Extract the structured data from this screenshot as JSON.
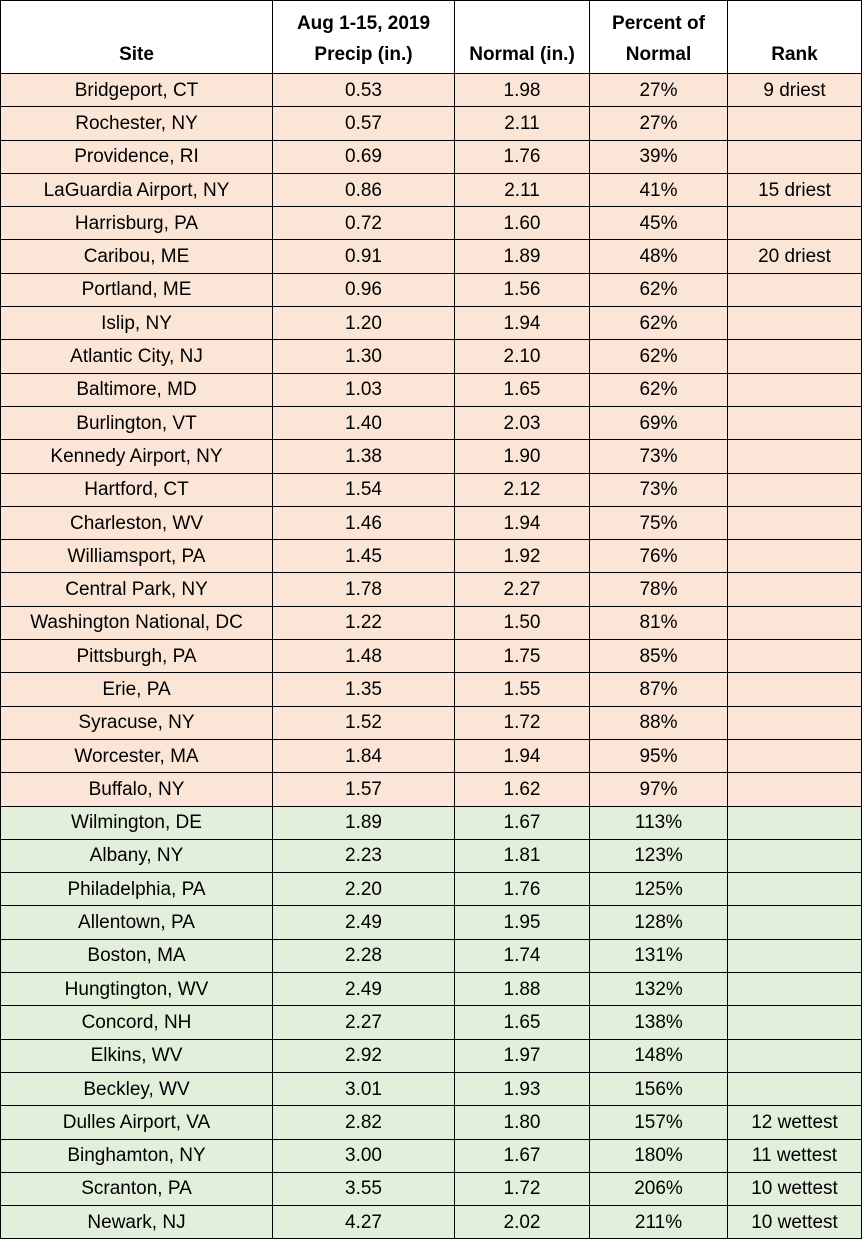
{
  "headers": {
    "site": "Site",
    "precip_line1": "Aug 1-15, 2019",
    "precip_line2": "Precip (in.)",
    "normal": "Normal (in.)",
    "percent_line1": "Percent of",
    "percent_line2": "Normal",
    "rank": "Rank"
  },
  "colors": {
    "below_normal_row": "#fbe5d6",
    "above_normal_row": "#e2efda"
  },
  "rows": [
    {
      "site": "Bridgeport, CT",
      "precip": "0.53",
      "normal": "1.98",
      "percent": "27%",
      "rank": "9 driest",
      "group": "dry"
    },
    {
      "site": "Rochester, NY",
      "precip": "0.57",
      "normal": "2.11",
      "percent": "27%",
      "rank": "",
      "group": "dry"
    },
    {
      "site": "Providence, RI",
      "precip": "0.69",
      "normal": "1.76",
      "percent": "39%",
      "rank": "",
      "group": "dry"
    },
    {
      "site": "LaGuardia Airport, NY",
      "precip": "0.86",
      "normal": "2.11",
      "percent": "41%",
      "rank": "15 driest",
      "group": "dry"
    },
    {
      "site": "Harrisburg, PA",
      "precip": "0.72",
      "normal": "1.60",
      "percent": "45%",
      "rank": "",
      "group": "dry"
    },
    {
      "site": "Caribou, ME",
      "precip": "0.91",
      "normal": "1.89",
      "percent": "48%",
      "rank": "20 driest",
      "group": "dry"
    },
    {
      "site": "Portland, ME",
      "precip": "0.96",
      "normal": "1.56",
      "percent": "62%",
      "rank": "",
      "group": "dry"
    },
    {
      "site": "Islip, NY",
      "precip": "1.20",
      "normal": "1.94",
      "percent": "62%",
      "rank": "",
      "group": "dry"
    },
    {
      "site": "Atlantic City, NJ",
      "precip": "1.30",
      "normal": "2.10",
      "percent": "62%",
      "rank": "",
      "group": "dry"
    },
    {
      "site": "Baltimore, MD",
      "precip": "1.03",
      "normal": "1.65",
      "percent": "62%",
      "rank": "",
      "group": "dry"
    },
    {
      "site": "Burlington, VT",
      "precip": "1.40",
      "normal": "2.03",
      "percent": "69%",
      "rank": "",
      "group": "dry"
    },
    {
      "site": "Kennedy Airport, NY",
      "precip": "1.38",
      "normal": "1.90",
      "percent": "73%",
      "rank": "",
      "group": "dry"
    },
    {
      "site": "Hartford, CT",
      "precip": "1.54",
      "normal": "2.12",
      "percent": "73%",
      "rank": "",
      "group": "dry"
    },
    {
      "site": "Charleston, WV",
      "precip": "1.46",
      "normal": "1.94",
      "percent": "75%",
      "rank": "",
      "group": "dry"
    },
    {
      "site": "Williamsport, PA",
      "precip": "1.45",
      "normal": "1.92",
      "percent": "76%",
      "rank": "",
      "group": "dry"
    },
    {
      "site": "Central Park, NY",
      "precip": "1.78",
      "normal": "2.27",
      "percent": "78%",
      "rank": "",
      "group": "dry"
    },
    {
      "site": "Washington National, DC",
      "precip": "1.22",
      "normal": "1.50",
      "percent": "81%",
      "rank": "",
      "group": "dry"
    },
    {
      "site": "Pittsburgh, PA",
      "precip": "1.48",
      "normal": "1.75",
      "percent": "85%",
      "rank": "",
      "group": "dry"
    },
    {
      "site": "Erie, PA",
      "precip": "1.35",
      "normal": "1.55",
      "percent": "87%",
      "rank": "",
      "group": "dry"
    },
    {
      "site": "Syracuse, NY",
      "precip": "1.52",
      "normal": "1.72",
      "percent": "88%",
      "rank": "",
      "group": "dry"
    },
    {
      "site": "Worcester, MA",
      "precip": "1.84",
      "normal": "1.94",
      "percent": "95%",
      "rank": "",
      "group": "dry"
    },
    {
      "site": "Buffalo, NY",
      "precip": "1.57",
      "normal": "1.62",
      "percent": "97%",
      "rank": "",
      "group": "dry"
    },
    {
      "site": "Wilmington, DE",
      "precip": "1.89",
      "normal": "1.67",
      "percent": "113%",
      "rank": "",
      "group": "wet"
    },
    {
      "site": "Albany, NY",
      "precip": "2.23",
      "normal": "1.81",
      "percent": "123%",
      "rank": "",
      "group": "wet"
    },
    {
      "site": "Philadelphia, PA",
      "precip": "2.20",
      "normal": "1.76",
      "percent": "125%",
      "rank": "",
      "group": "wet"
    },
    {
      "site": "Allentown, PA",
      "precip": "2.49",
      "normal": "1.95",
      "percent": "128%",
      "rank": "",
      "group": "wet"
    },
    {
      "site": "Boston, MA",
      "precip": "2.28",
      "normal": "1.74",
      "percent": "131%",
      "rank": "",
      "group": "wet"
    },
    {
      "site": "Hungtington, WV",
      "precip": "2.49",
      "normal": "1.88",
      "percent": "132%",
      "rank": "",
      "group": "wet"
    },
    {
      "site": "Concord, NH",
      "precip": "2.27",
      "normal": "1.65",
      "percent": "138%",
      "rank": "",
      "group": "wet"
    },
    {
      "site": "Elkins, WV",
      "precip": "2.92",
      "normal": "1.97",
      "percent": "148%",
      "rank": "",
      "group": "wet"
    },
    {
      "site": "Beckley, WV",
      "precip": "3.01",
      "normal": "1.93",
      "percent": "156%",
      "rank": "",
      "group": "wet"
    },
    {
      "site": "Dulles Airport, VA",
      "precip": "2.82",
      "normal": "1.80",
      "percent": "157%",
      "rank": "12 wettest",
      "group": "wet"
    },
    {
      "site": "Binghamton, NY",
      "precip": "3.00",
      "normal": "1.67",
      "percent": "180%",
      "rank": "11 wettest",
      "group": "wet"
    },
    {
      "site": "Scranton, PA",
      "precip": "3.55",
      "normal": "1.72",
      "percent": "206%",
      "rank": "10 wettest",
      "group": "wet"
    },
    {
      "site": "Newark, NJ",
      "precip": "4.27",
      "normal": "2.02",
      "percent": "211%",
      "rank": "10 wettest",
      "group": "wet"
    }
  ]
}
